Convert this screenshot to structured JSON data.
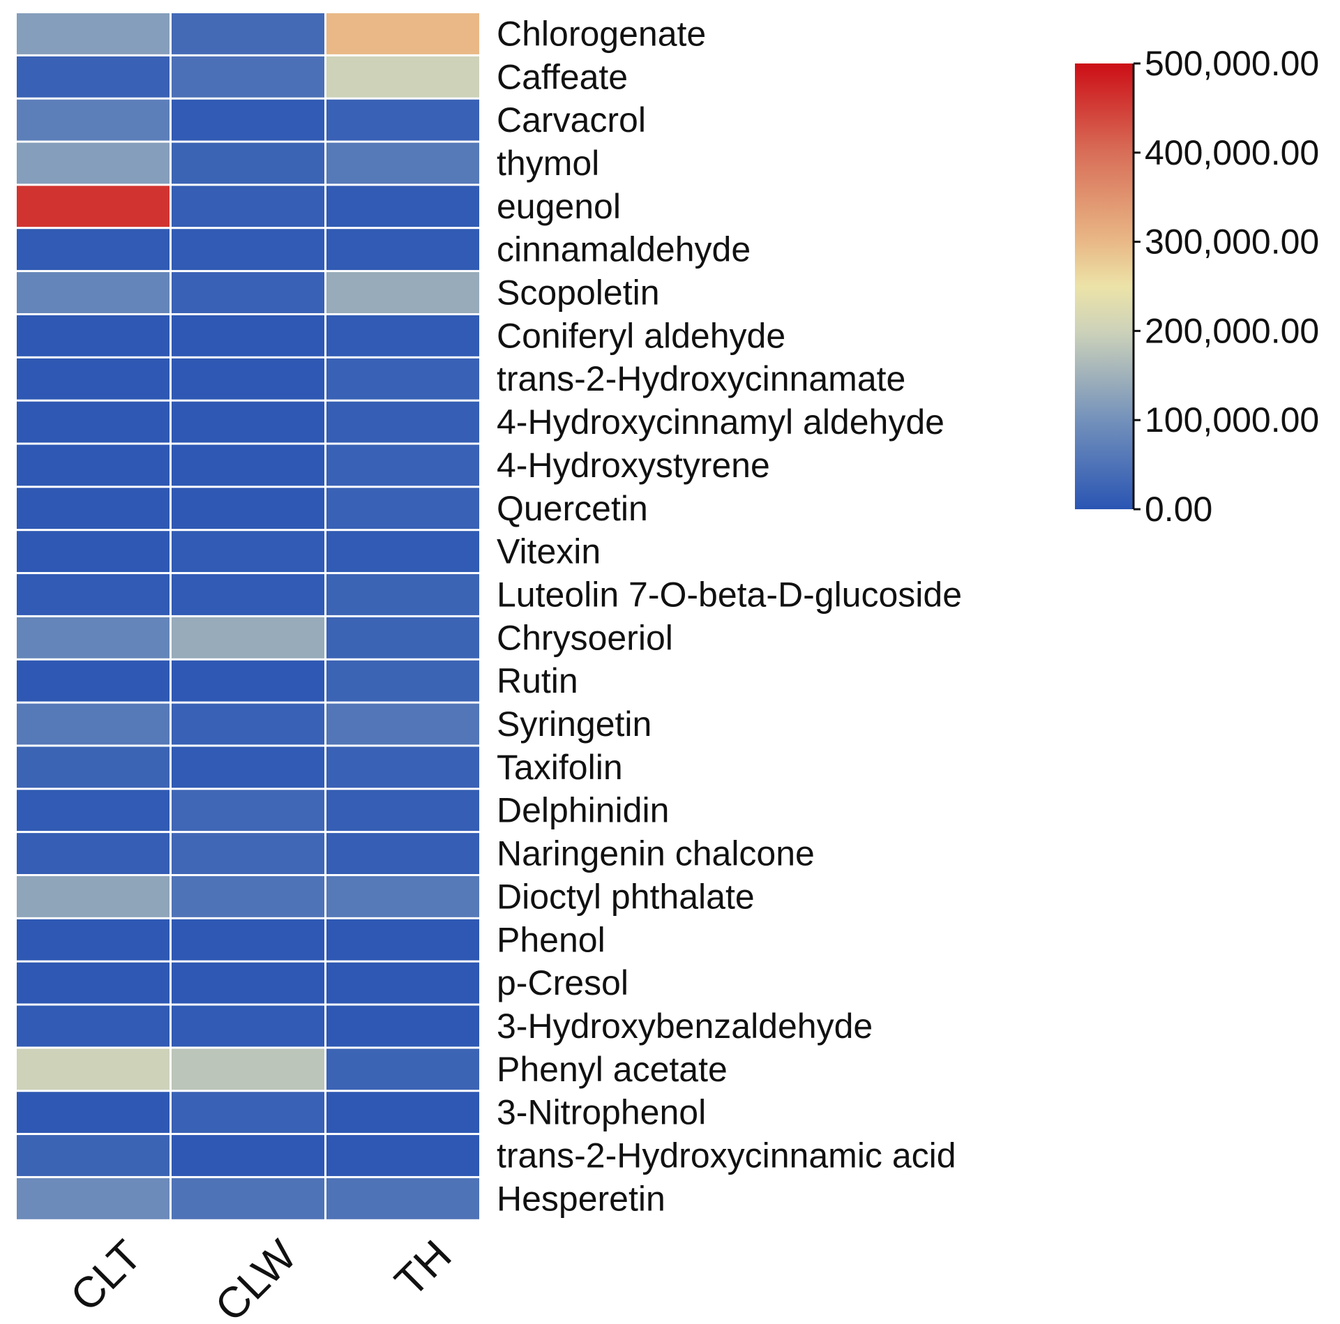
{
  "chart_data": {
    "type": "heatmap",
    "title": "",
    "columns": [
      "CLT",
      "CLW",
      "TH"
    ],
    "rows": [
      "Chlorogenate",
      "Caffeate",
      "Carvacrol",
      "thymol",
      "eugenol",
      "cinnamaldehyde",
      "Scopoletin",
      "Coniferyl aldehyde",
      "trans-2-Hydroxycinnamate",
      "4-Hydroxycinnamyl aldehyde",
      "4-Hydroxystyrene",
      "Quercetin",
      "Vitexin",
      "Luteolin 7-O-beta-D-glucoside",
      "Chrysoeriol",
      "Rutin",
      "Syringetin",
      "Taxifolin",
      "Delphinidin",
      "Naringenin chalcone",
      "Dioctyl phthalate",
      "Phenol",
      "p-Cresol",
      "3-Hydroxybenzaldehyde",
      "Phenyl acetate",
      "3-Nitrophenol",
      "trans-2-Hydroxycinnamic acid",
      "Hesperetin"
    ],
    "values": [
      [
        120000,
        35000,
        300000
      ],
      [
        20000,
        45000,
        200000
      ],
      [
        70000,
        10000,
        20000
      ],
      [
        120000,
        25000,
        60000
      ],
      [
        460000,
        15000,
        10000
      ],
      [
        10000,
        10000,
        10000
      ],
      [
        80000,
        20000,
        140000
      ],
      [
        5000,
        5000,
        10000
      ],
      [
        5000,
        5000,
        20000
      ],
      [
        5000,
        5000,
        15000
      ],
      [
        5000,
        5000,
        20000
      ],
      [
        5000,
        5000,
        20000
      ],
      [
        5000,
        10000,
        10000
      ],
      [
        10000,
        10000,
        25000
      ],
      [
        80000,
        140000,
        25000
      ],
      [
        5000,
        5000,
        25000
      ],
      [
        60000,
        20000,
        55000
      ],
      [
        25000,
        10000,
        20000
      ],
      [
        10000,
        30000,
        15000
      ],
      [
        15000,
        30000,
        15000
      ],
      [
        130000,
        50000,
        60000
      ],
      [
        5000,
        5000,
        5000
      ],
      [
        5000,
        5000,
        5000
      ],
      [
        10000,
        10000,
        5000
      ],
      [
        200000,
        180000,
        25000
      ],
      [
        5000,
        20000,
        5000
      ],
      [
        25000,
        5000,
        5000
      ],
      [
        90000,
        50000,
        50000
      ]
    ],
    "colorbar": {
      "min": 0,
      "max": 500000,
      "ticks": [
        0,
        100000,
        200000,
        300000,
        400000,
        500000
      ],
      "tick_labels": [
        "0.00",
        "100,000.00",
        "200,000.00",
        "300,000.00",
        "400,000.00",
        "500,000.00"
      ],
      "stops": [
        {
          "value": 0,
          "color": "#2a55b3"
        },
        {
          "value": 100000,
          "color": "#7391bb"
        },
        {
          "value": 200000,
          "color": "#cdd2b9"
        },
        {
          "value": 250000,
          "color": "#ece3a8"
        },
        {
          "value": 300000,
          "color": "#e9b886"
        },
        {
          "value": 400000,
          "color": "#d86e58"
        },
        {
          "value": 500000,
          "color": "#cc0e16"
        }
      ]
    },
    "grid_color": "#ffffff"
  }
}
